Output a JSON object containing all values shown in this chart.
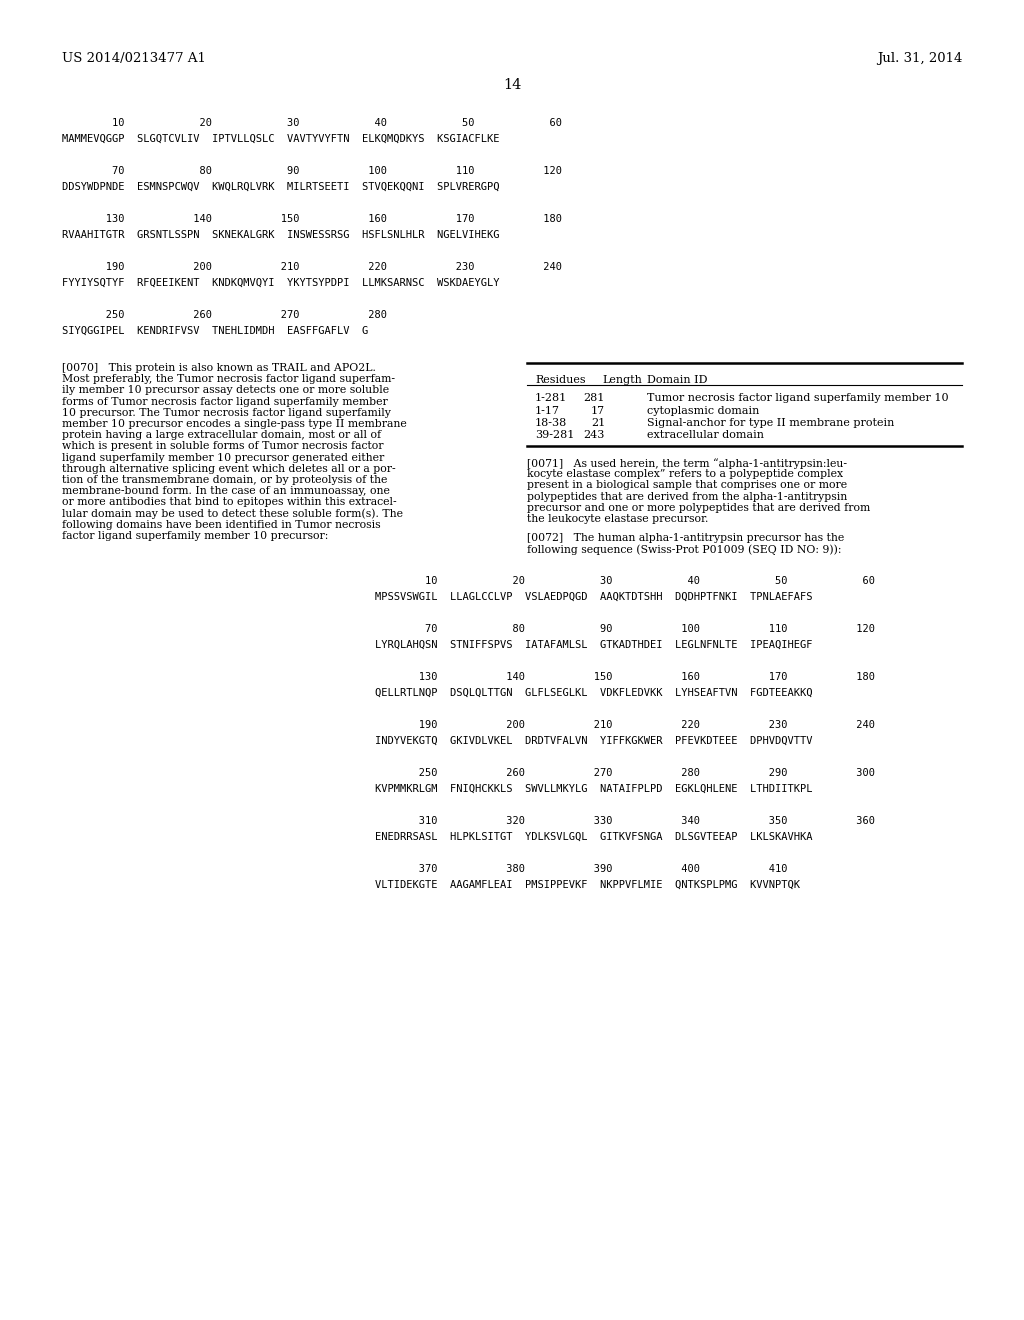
{
  "header_left": "US 2014/0213477 A1",
  "header_right": "Jul. 31, 2014",
  "page_number": "14",
  "background_color": "#ffffff",
  "seq1_numbers": "        10            20            30            40            50            60",
  "seq1_aa": "MAMMEVQGGP  SLGQTCVLIV  IPTVLLQSLC  VAVTYVYFTN  ELKQMQDKYS  KSGIACFLKE",
  "seq2_numbers": "        70            80            90           100           110           120",
  "seq2_aa": "DDSYWDPNDE  ESMNSPCWQV  KWQLRQLVRK  MILRTSEETI  STVQEKQQNI  SPLVRERGPQ",
  "seq3_numbers": "       130           140           150           160           170           180",
  "seq3_aa": "RVAAHITGTR  GRSNTLSSPN  SKNEKALGRK  INSWESSRSG  HSFLSNLHLR  NGELVIHEKG",
  "seq4_numbers": "       190           200           210           220           230           240",
  "seq4_aa": "FYYIYSQTYF  RFQEEIKENT  KNDKQMVQYI  YKYTSYPDPI  LLMKSARNSC  WSKDAEYGLY",
  "seq5_numbers": "       250           260           270           280",
  "seq5_aa": "SIYQGGIPEL  KENDRIFVSV  TNEHLIDMDH  EASFFGAFLV  G",
  "para0070": "[0070]   This protein is also known as TRAIL and APO2L.\nMost preferably, the Tumor necrosis factor ligand superfam-\nily member 10 precursor assay detects one or more soluble\nforms of Tumor necrosis factor ligand superfamily member\n10 precursor. The Tumor necrosis factor ligand superfamily\nmember 10 precursor encodes a single-pass type II membrane\nprotein having a large extracellular domain, most or all of\nwhich is present in soluble forms of Tumor necrosis factor\nligand superfamily member 10 precursor generated either\nthrough alternative splicing event which deletes all or a por-\ntion of the transmembrane domain, or by proteolysis of the\nmembrane-bound form. In the case of an immunoassay, one\nor more antibodies that bind to epitopes within this extracel-\nlular domain may be used to detect these soluble form(s). The\nfollowing domains have been identified in Tumor necrosis\nfactor ligand superfamily member 10 precursor:",
  "table_col_headers": [
    "Residues",
    "Length",
    "Domain ID"
  ],
  "table_rows": [
    [
      "1-281",
      "281",
      "Tumor necrosis factor ligand superfamily member 10"
    ],
    [
      "1-17",
      "17",
      "cytoplasmic domain"
    ],
    [
      "18-38",
      "21",
      "Signal-anchor for type II membrane protein"
    ],
    [
      "39-281",
      "243",
      "extracellular domain"
    ]
  ],
  "para0071": "[0071]   As used herein, the term “alpha-1-antitrypsin:leu-\nkocyte elastase complex” refers to a polypeptide complex\npresent in a biological sample that comprises one or more\npolypeptides that are derived from the alpha-1-antitrypsin\nprecursor and one or more polypeptides that are derived from\nthe leukocyte elastase precursor.",
  "para0072": "[0072]   The human alpha-1-antitrypsin precursor has the\nfollowing sequence (Swiss-Prot P01009 (SEQ ID NO: 9)):",
  "seq6_numbers": "        10            20            30            40            50            60",
  "seq6_aa": "MPSSVSWGIL  LLAGLCCLVP  VSLAEDPQGD  AAQKTDTSHH  DQDHPTFNKI  TPNLAEFAFS",
  "seq7_numbers": "        70            80            90           100           110           120",
  "seq7_aa": "LYRQLAHQSN  STNIFFSPVS  IATAFAMLSL  GTKADTHDEI  LEGLNFNLTE  IPEAQIHEGF",
  "seq8_numbers": "       130           140           150           160           170           180",
  "seq8_aa": "QELLRTLNQP  DSQLQLTTGN  GLFLSEGLKL  VDKFLEDVKK  LYHSEAFTVN  FGDTEEAKKQ",
  "seq9_numbers": "       190           200           210           220           230           240",
  "seq9_aa": "INDYVEKGTQ  GKIVDLVKEL  DRDTVFALVN  YIFFKGKWER  PFEVKDTEEE  DPHVDQVTTV",
  "seq10_numbers": "       250           260           270           280           290           300",
  "seq10_aa": "KVPMMKRLGM  FNIQHCKKLS  SWVLLMKYLG  NATAIFPLPD  EGKLQHLENE  LTHDIITKPL",
  "seq11_numbers": "       310           320           330           340           350           360",
  "seq11_aa": "ENEDRRSASL  HLPKLSITGT  YDLKSVLGQL  GITKVFSNGA  DLSGVTEEAP  LKLSKAVHKA",
  "seq12_numbers": "       370           380           390           400           410",
  "seq12_aa": "VLTIDEKGTE  AAGAMFLEAI  PMSIPPEVKF  NKPPVFLMIE  QNTKSPLPMG  KVVNPTQK"
}
